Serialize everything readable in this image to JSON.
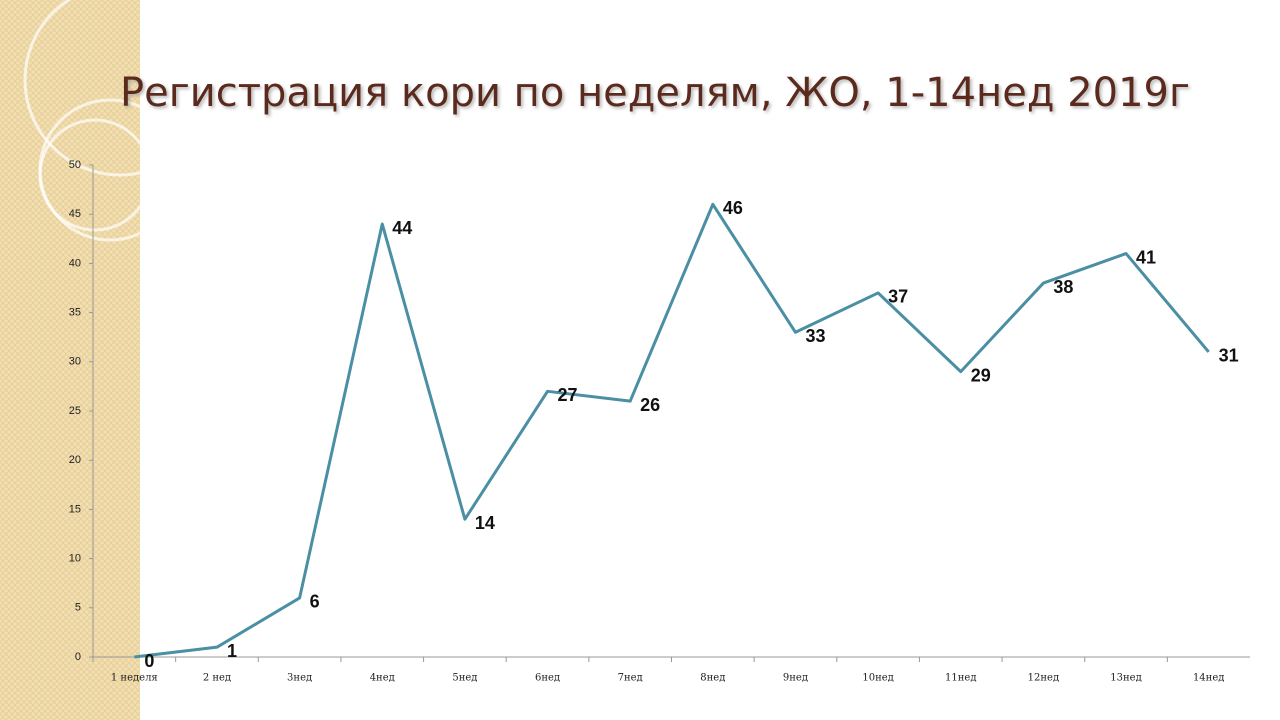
{
  "chart_data": {
    "type": "line",
    "title": "Регистрация кори по неделям, ЖО, 1-14нед 2019г",
    "categories": [
      "1 неделя",
      "2 нед",
      "3нед",
      "4нед",
      "5нед",
      "6нед",
      "7нед",
      "8нед",
      "9нед",
      "10нед",
      "11нед",
      "12нед",
      "13нед",
      "14нед"
    ],
    "values": [
      0,
      1,
      6,
      44,
      14,
      27,
      26,
      46,
      33,
      37,
      29,
      38,
      41,
      31
    ],
    "color": "#4a8fa3",
    "ylim": [
      0,
      50
    ],
    "yticks": [
      0,
      5,
      10,
      15,
      20,
      25,
      30,
      35,
      40,
      45,
      50
    ],
    "grid": false
  }
}
